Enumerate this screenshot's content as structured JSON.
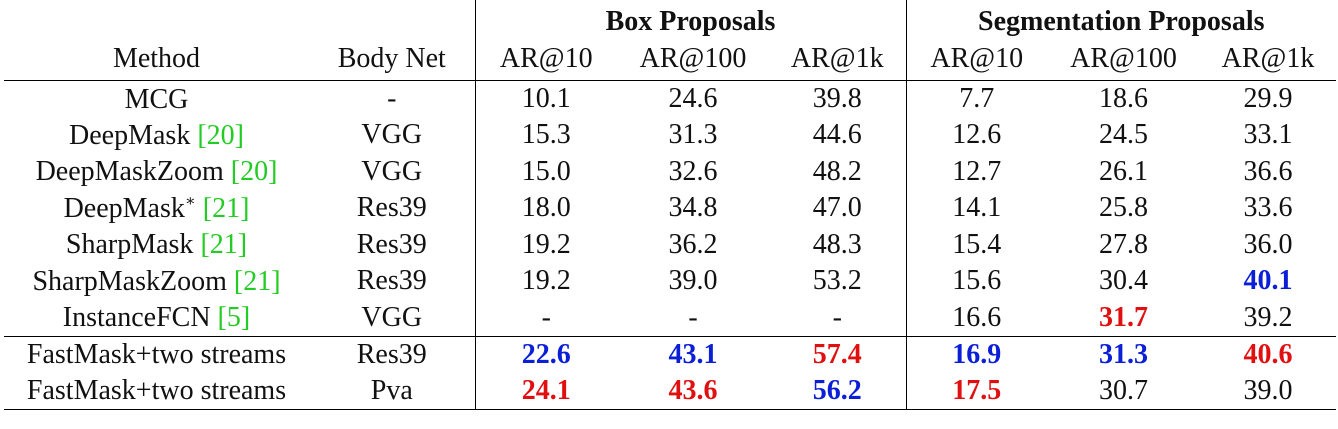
{
  "table": {
    "group_headers": {
      "box": "Box Proposals",
      "seg": "Segmentation Proposals"
    },
    "columns": [
      "Method",
      "Body Net",
      "AR@10",
      "AR@100",
      "AR@1k",
      "AR@10",
      "AR@100",
      "AR@1k"
    ],
    "rows": [
      {
        "method": "MCG",
        "ref": "",
        "sup": "",
        "net": "-",
        "v": [
          "10.1",
          "24.6",
          "39.8",
          "7.7",
          "18.6",
          "29.9"
        ]
      },
      {
        "method": "DeepMask ",
        "ref": "[20]",
        "sup": "",
        "net": "VGG",
        "v": [
          "15.3",
          "31.3",
          "44.6",
          "12.6",
          "24.5",
          "33.1"
        ]
      },
      {
        "method": "DeepMaskZoom ",
        "ref": "[20]",
        "sup": "",
        "net": "VGG",
        "v": [
          "15.0",
          "32.6",
          "48.2",
          "12.7",
          "26.1",
          "36.6"
        ]
      },
      {
        "method": "DeepMask",
        "ref": "[21]",
        "sup": "∗",
        "net": "Res39",
        "v": [
          "18.0",
          "34.8",
          "47.0",
          "14.1",
          "25.8",
          "33.6"
        ]
      },
      {
        "method": "SharpMask ",
        "ref": "[21]",
        "sup": "",
        "net": "Res39",
        "v": [
          "19.2",
          "36.2",
          "48.3",
          "15.4",
          "27.8",
          "36.0"
        ]
      },
      {
        "method": "SharpMaskZoom ",
        "ref": "[21]",
        "sup": "",
        "net": "Res39",
        "v": [
          "19.2",
          "39.0",
          "53.2",
          "15.6",
          "30.4",
          "40.1"
        ]
      },
      {
        "method": "InstanceFCN ",
        "ref": "[5]",
        "sup": "",
        "net": "VGG",
        "v": [
          "-",
          "-",
          "-",
          "16.6",
          "31.7",
          "39.2"
        ]
      },
      {
        "method": "FastMask+two streams",
        "ref": "",
        "sup": "",
        "net": "Res39",
        "v": [
          "22.6",
          "43.1",
          "57.4",
          "16.9",
          "31.3",
          "40.6"
        ]
      },
      {
        "method": "FastMask+two streams",
        "ref": "",
        "sup": "",
        "net": "Pva",
        "v": [
          "24.1",
          "43.6",
          "56.2",
          "17.5",
          "30.7",
          "39.0"
        ]
      }
    ],
    "highlight_colors": {
      "best": "#e01010",
      "second": "#0a1fd6",
      "citation": "#22cc22"
    }
  }
}
